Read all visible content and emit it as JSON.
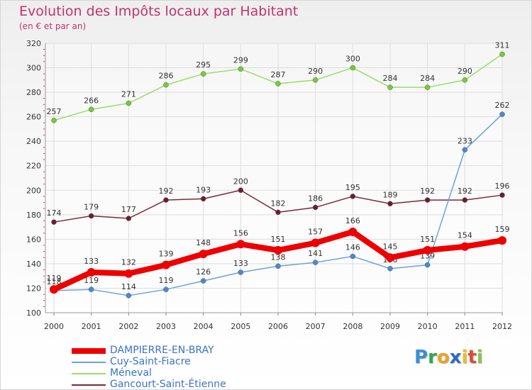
{
  "header": {
    "title": "Evolution des Impôts locaux par Habitant",
    "subtitle": "(en € et par an)"
  },
  "chart_data": {
    "type": "line",
    "title": "Evolution des Impôts locaux par Habitant",
    "subtitle": "(en € et par an)",
    "xlabel": "",
    "ylabel": "",
    "ylim": [
      100,
      320
    ],
    "yticks": [
      100,
      120,
      140,
      160,
      180,
      200,
      220,
      240,
      260,
      280,
      300,
      320
    ],
    "grid": true,
    "legend_position": "bottom-left",
    "x": [
      "2000",
      "2001",
      "2002",
      "2003",
      "2004",
      "2005",
      "2006",
      "2007",
      "2008",
      "2009",
      "2010",
      "2011",
      "2012"
    ],
    "series": [
      {
        "name": "Méneval",
        "color": "#99dd66",
        "marker": "#77cc33",
        "thick": false,
        "values": [
          257,
          266,
          271,
          286,
          295,
          299,
          287,
          290,
          300,
          284,
          284,
          290,
          311
        ]
      },
      {
        "name": "Gancourt-Saint-Étienne",
        "color": "#7a2a3a",
        "marker": "#6a1f2d",
        "thick": false,
        "values": [
          174,
          179,
          177,
          192,
          193,
          200,
          182,
          186,
          195,
          189,
          192,
          192,
          196
        ]
      },
      {
        "name": "Cuy-Saint-Fiacre",
        "color": "#6aa3dc",
        "marker": "#4a8ad0",
        "thick": false,
        "values": [
          118,
          119,
          114,
          119,
          126,
          133,
          138,
          141,
          146,
          136,
          139,
          233,
          262
        ]
      },
      {
        "name": "DAMPIERRE-EN-BRAY",
        "color": "#ee0000",
        "marker": "#ee0000",
        "thick": true,
        "values": [
          119,
          133,
          132,
          139,
          148,
          156,
          151,
          157,
          166,
          145,
          151,
          154,
          159
        ]
      }
    ],
    "legend_order": [
      "DAMPIERRE-EN-BRAY",
      "Cuy-Saint-Fiacre",
      "Méneval",
      "Gancourt-Saint-Étienne"
    ]
  },
  "branding": {
    "logo_letters": [
      "P",
      "r",
      "o",
      "x",
      "i",
      "t",
      "i"
    ],
    "logo_colors": [
      "#3a8fd8",
      "#2fa84f",
      "#f0a020",
      "#2b6cc4",
      "#e8c020",
      "#e04a30",
      "#8bc34a"
    ]
  }
}
